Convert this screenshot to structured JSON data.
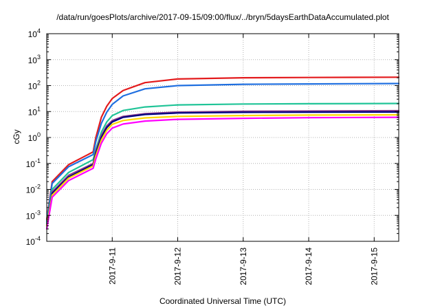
{
  "chart_data": {
    "type": "line",
    "title": "/data/run/goesPlots/archive/2017-09-15/09:00/flux/../bryn/5daysEarthDataAccumulated.plot",
    "xlabel": "Coordinated Universal Time (UTC)",
    "ylabel": "cGy",
    "yscale": "log",
    "ylim": [
      0.0001,
      10000
    ],
    "xlim": [
      "2017-09-10 00:00",
      "2017-09-15 09:00"
    ],
    "grid": true,
    "legend": "none",
    "y_ticks": [
      {
        "base": "10",
        "exp": "-4"
      },
      {
        "base": "10",
        "exp": "-3"
      },
      {
        "base": "10",
        "exp": "-2"
      },
      {
        "base": "10",
        "exp": "-1"
      },
      {
        "base": "10",
        "exp": "0"
      },
      {
        "base": "10",
        "exp": "1"
      },
      {
        "base": "10",
        "exp": "2"
      },
      {
        "base": "10",
        "exp": "3"
      },
      {
        "base": "10",
        "exp": "4"
      }
    ],
    "x_ticks": [
      {
        "label": "2017-9-11",
        "date": "2017-09-11 00:00"
      },
      {
        "label": "2017-9-12",
        "date": "2017-09-12 00:00"
      },
      {
        "label": "2017-9-13",
        "date": "2017-09-13 00:00"
      },
      {
        "label": "2017-9-14",
        "date": "2017-09-14 00:00"
      },
      {
        "label": "2017-9-15",
        "date": "2017-09-15 00:00"
      }
    ],
    "series": [
      {
        "color": "#e31a1c",
        "x": [
          "2017-09-10 00:00",
          "2017-09-10 02:00",
          "2017-09-10 08:00",
          "2017-09-10 17:00",
          "2017-09-10 18:00",
          "2017-09-10 20:00",
          "2017-09-10 22:00",
          "2017-09-11 00:00",
          "2017-09-11 04:00",
          "2017-09-11 12:00",
          "2017-09-12 00:00",
          "2017-09-13 00:00",
          "2017-09-14 00:00",
          "2017-09-15 09:00"
        ],
        "y": [
          0.0007,
          0.02,
          0.09,
          0.28,
          1.0,
          6.0,
          16,
          32,
          65,
          130,
          180,
          200,
          205,
          210
        ]
      },
      {
        "color": "#1f6fe0",
        "x": [
          "2017-09-10 00:00",
          "2017-09-10 02:00",
          "2017-09-10 08:00",
          "2017-09-10 17:00",
          "2017-09-10 18:00",
          "2017-09-10 20:00",
          "2017-09-10 22:00",
          "2017-09-11 00:00",
          "2017-09-11 04:00",
          "2017-09-11 12:00",
          "2017-09-12 00:00",
          "2017-09-13 00:00",
          "2017-09-14 00:00",
          "2017-09-15 09:00"
        ],
        "y": [
          0.0006,
          0.017,
          0.075,
          0.22,
          0.7,
          3.5,
          9.5,
          19,
          40,
          75,
          100,
          112,
          116,
          120
        ]
      },
      {
        "color": "#1fc497",
        "x": [
          "2017-09-10 00:00",
          "2017-09-10 02:00",
          "2017-09-10 08:00",
          "2017-09-10 17:00",
          "2017-09-10 18:00",
          "2017-09-10 20:00",
          "2017-09-10 22:00",
          "2017-09-11 00:00",
          "2017-09-11 04:00",
          "2017-09-11 12:00",
          "2017-09-12 00:00",
          "2017-09-13 00:00",
          "2017-09-14 00:00",
          "2017-09-15 09:00"
        ],
        "y": [
          0.0005,
          0.01,
          0.045,
          0.14,
          0.35,
          1.6,
          4.0,
          7.0,
          11,
          15,
          18,
          19.5,
          20,
          20.5
        ]
      },
      {
        "color": "#8b3a8b",
        "x": [
          "2017-09-10 00:00",
          "2017-09-10 02:00",
          "2017-09-10 08:00",
          "2017-09-10 17:00",
          "2017-09-10 18:00",
          "2017-09-10 20:00",
          "2017-09-10 22:00",
          "2017-09-11 00:00",
          "2017-09-11 04:00",
          "2017-09-11 12:00",
          "2017-09-12 00:00",
          "2017-09-13 00:00",
          "2017-09-14 00:00",
          "2017-09-15 09:00"
        ],
        "y": [
          0.0004,
          0.008,
          0.035,
          0.1,
          0.3,
          1.2,
          2.8,
          4.5,
          6.5,
          8.3,
          9.5,
          10.2,
          10.5,
          10.8
        ]
      },
      {
        "color": "#000080",
        "x": [
          "2017-09-10 00:00",
          "2017-09-10 02:00",
          "2017-09-10 08:00",
          "2017-09-10 17:00",
          "2017-09-10 18:00",
          "2017-09-10 20:00",
          "2017-09-10 22:00",
          "2017-09-11 00:00",
          "2017-09-11 04:00",
          "2017-09-11 12:00",
          "2017-09-12 00:00",
          "2017-09-13 00:00",
          "2017-09-14 00:00",
          "2017-09-15 09:00"
        ],
        "y": [
          0.0004,
          0.007,
          0.03,
          0.09,
          0.25,
          1.0,
          2.4,
          4.0,
          6.0,
          7.7,
          8.8,
          9.3,
          9.5,
          9.6
        ]
      },
      {
        "color": "#ffd700",
        "x": [
          "2017-09-10 00:00",
          "2017-09-10 02:00",
          "2017-09-10 08:00",
          "2017-09-10 17:00",
          "2017-09-10 18:00",
          "2017-09-10 20:00",
          "2017-09-10 22:00",
          "2017-09-11 00:00",
          "2017-09-11 04:00",
          "2017-09-11 12:00",
          "2017-09-12 00:00",
          "2017-09-13 00:00",
          "2017-09-14 00:00",
          "2017-09-15 09:00"
        ],
        "y": [
          0.0004,
          0.006,
          0.027,
          0.08,
          0.2,
          0.8,
          1.9,
          3.2,
          4.5,
          5.7,
          6.5,
          7.0,
          7.3,
          7.5
        ]
      },
      {
        "color": "#ff00ff",
        "x": [
          "2017-09-10 00:00",
          "2017-09-10 02:00",
          "2017-09-10 08:00",
          "2017-09-10 17:00",
          "2017-09-10 18:00",
          "2017-09-10 20:00",
          "2017-09-10 22:00",
          "2017-09-11 00:00",
          "2017-09-11 04:00",
          "2017-09-11 12:00",
          "2017-09-12 00:00",
          "2017-09-13 00:00",
          "2017-09-14 00:00",
          "2017-09-15 09:00"
        ],
        "y": [
          0.0003,
          0.005,
          0.022,
          0.065,
          0.15,
          0.6,
          1.4,
          2.3,
          3.3,
          4.3,
          5.0,
          5.5,
          5.8,
          6.0
        ]
      }
    ]
  }
}
